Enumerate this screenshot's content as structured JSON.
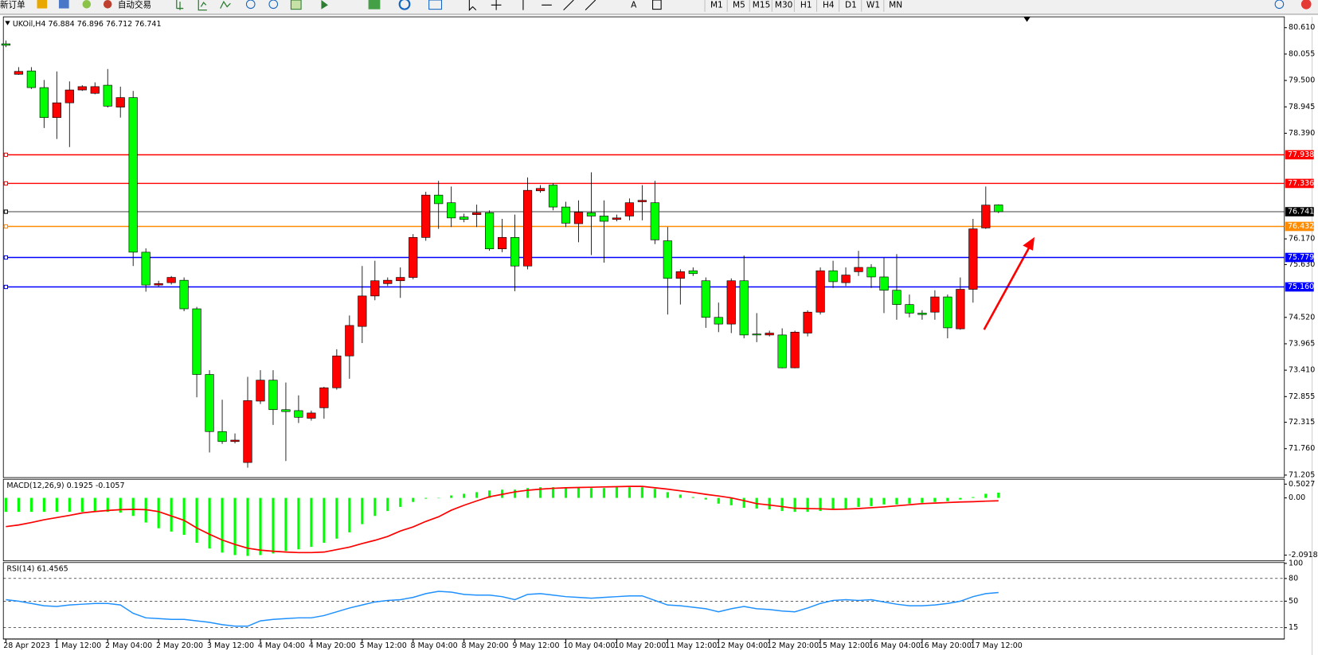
{
  "toolbar": {
    "new_order": "新订单",
    "auto_trading": "自动交易",
    "text_tool": "A",
    "timeframes": [
      "M1",
      "M5",
      "M15",
      "M30",
      "H1",
      "H4",
      "D1",
      "W1",
      "MN"
    ]
  },
  "chart_data": [
    {
      "type": "candlestick",
      "title": "UKOil,H4 76.884 76.896 76.712 76.741",
      "categories": [
        "28 Apr 2023",
        null,
        null,
        null,
        "1 May 12:00",
        null,
        null,
        null,
        "2 May 04:00",
        null,
        null,
        null,
        "2 May 20:00",
        null,
        null,
        null,
        "3 May 12:00",
        null,
        null,
        null,
        "4 May 04:00",
        null,
        null,
        null,
        "4 May 20:00",
        null,
        null,
        null,
        "5 May 12:00",
        null,
        null,
        null,
        "8 May 04:00",
        null,
        null,
        null,
        "8 May 20:00",
        null,
        null,
        null,
        "9 May 12:00",
        null,
        null,
        null,
        "10 May 04:00",
        null,
        null,
        null,
        "10 May 20:00",
        null,
        null,
        null,
        "11 May 12:00",
        null,
        null,
        null,
        "12 May 04:00",
        null,
        null,
        null,
        "12 May 20:00",
        null,
        null,
        null,
        "15 May 12:00",
        null,
        null,
        null,
        "16 May 04:00",
        null,
        null,
        null,
        "16 May 20:00",
        null,
        null,
        null,
        "17 May 12:00",
        null,
        null
      ],
      "open": [
        80.27,
        79.63,
        79.7,
        79.35,
        78.72,
        79.03,
        79.3,
        79.23,
        79.4,
        78.94,
        79.14,
        75.89,
        75.2,
        75.25,
        75.3,
        74.7,
        73.32,
        72.12,
        71.91,
        71.47,
        72.76,
        73.2,
        72.58,
        72.56,
        72.4,
        72.62,
        73.04,
        73.71,
        74.33,
        74.97,
        75.23,
        75.29,
        75.36,
        76.2,
        77.09,
        76.93,
        76.63,
        76.68,
        76.72,
        75.96,
        76.2,
        75.6,
        77.18,
        77.3,
        76.84,
        76.49,
        76.72,
        76.65,
        76.58,
        76.65,
        76.95,
        76.93,
        76.13,
        75.34,
        75.5,
        75.29,
        74.52,
        74.38,
        75.29,
        74.17,
        74.15,
        74.15,
        73.46,
        74.19,
        74.63,
        75.5,
        75.25,
        75.48,
        75.57,
        75.37,
        75.09,
        74.79,
        74.61,
        74.63,
        74.95,
        74.28,
        75.11,
        76.4,
        76.884
      ],
      "high": [
        80.34,
        79.78,
        79.78,
        79.51,
        79.69,
        79.48,
        79.4,
        79.46,
        79.74,
        79.37,
        79.28,
        75.97,
        75.29,
        75.39,
        75.36,
        74.74,
        73.41,
        72.79,
        72.08,
        73.27,
        73.41,
        73.41,
        73.15,
        72.88,
        72.56,
        73.06,
        73.85,
        74.56,
        75.6,
        75.71,
        75.36,
        75.57,
        76.27,
        77.16,
        77.39,
        77.27,
        76.7,
        76.89,
        76.77,
        76.59,
        76.68,
        77.46,
        77.3,
        77.34,
        76.95,
        76.98,
        77.57,
        76.98,
        76.68,
        77.02,
        77.3,
        77.39,
        76.42,
        75.53,
        75.57,
        75.36,
        74.83,
        75.34,
        75.82,
        74.61,
        74.24,
        74.29,
        74.24,
        74.67,
        75.57,
        75.71,
        75.57,
        75.92,
        75.64,
        75.78,
        75.85,
        75.0,
        74.67,
        75.09,
        75.0,
        75.36,
        76.59,
        77.27,
        76.896
      ],
      "low": [
        80.2,
        79.62,
        79.32,
        78.5,
        78.27,
        78.1,
        79.28,
        79.21,
        78.93,
        78.72,
        75.6,
        75.06,
        75.16,
        75.21,
        74.65,
        72.84,
        71.68,
        71.86,
        71.87,
        71.36,
        72.7,
        72.26,
        71.5,
        72.3,
        72.35,
        72.39,
        73.0,
        73.23,
        73.98,
        74.88,
        75.18,
        74.93,
        75.32,
        76.13,
        76.38,
        76.42,
        76.52,
        76.42,
        75.92,
        75.89,
        75.07,
        75.53,
        77.14,
        76.77,
        76.42,
        76.1,
        75.83,
        75.67,
        76.54,
        76.56,
        76.56,
        76.06,
        74.58,
        74.79,
        75.39,
        74.3,
        74.21,
        74.19,
        74.08,
        74.0,
        74.12,
        73.45,
        73.45,
        74.12,
        74.58,
        75.14,
        75.18,
        75.39,
        75.14,
        74.61,
        74.47,
        74.52,
        74.47,
        74.47,
        74.08,
        74.26,
        74.83,
        76.38,
        76.712
      ],
      "close": [
        80.24,
        79.69,
        79.35,
        78.72,
        79.03,
        79.3,
        79.37,
        79.37,
        78.96,
        79.14,
        75.89,
        75.2,
        75.23,
        75.36,
        74.7,
        73.32,
        72.12,
        71.91,
        71.94,
        72.77,
        73.2,
        72.58,
        72.54,
        72.42,
        72.51,
        73.04,
        73.71,
        74.35,
        74.97,
        75.29,
        75.3,
        75.36,
        76.2,
        77.09,
        76.91,
        76.61,
        76.58,
        76.72,
        75.96,
        76.2,
        75.6,
        77.19,
        77.23,
        76.84,
        76.5,
        76.73,
        76.65,
        76.54,
        76.61,
        76.93,
        76.98,
        76.15,
        75.34,
        75.48,
        75.44,
        74.52,
        74.38,
        75.29,
        74.15,
        74.15,
        74.19,
        73.46,
        74.21,
        74.63,
        75.5,
        75.27,
        75.41,
        75.57,
        75.37,
        75.09,
        74.79,
        74.61,
        74.58,
        74.95,
        74.3,
        75.11,
        76.38,
        76.88,
        76.741
      ],
      "up_color": "#ff0000",
      "down_color": "#00ff00",
      "ylim": [
        71.17,
        80.82
      ],
      "yticks": [
        {
          "value": 80.61,
          "label": "80.610"
        },
        {
          "value": 80.055,
          "label": "80.055"
        },
        {
          "value": 79.5,
          "label": "79.500"
        },
        {
          "value": 78.945,
          "label": "78.945"
        },
        {
          "value": 78.39,
          "label": "78.390"
        },
        {
          "value": 76.17,
          "label": "76.170"
        },
        {
          "value": 75.63,
          "label": "75.630"
        },
        {
          "value": 74.52,
          "label": "74.520"
        },
        {
          "value": 73.965,
          "label": "73.965"
        },
        {
          "value": 73.41,
          "label": "73.410"
        },
        {
          "value": 72.855,
          "label": "72.855"
        },
        {
          "value": 72.315,
          "label": "72.315"
        },
        {
          "value": 71.76,
          "label": "71.760"
        },
        {
          "value": 71.205,
          "label": "71.205"
        }
      ],
      "levels": [
        {
          "value": 77.938,
          "label": "77.938",
          "color": "#ff0000"
        },
        {
          "value": 77.336,
          "label": "77.336",
          "color": "#ff0000"
        },
        {
          "value": 76.741,
          "label": "76.741",
          "color": "#000000"
        },
        {
          "value": 76.432,
          "label": "76.432",
          "color": "#ff8c00"
        },
        {
          "value": 75.779,
          "label": "75.779",
          "color": "#0000ff"
        },
        {
          "value": 75.16,
          "label": "75.160",
          "color": "#0000ff"
        }
      ]
    },
    {
      "type": "combo",
      "title": "MACD(12,26,9) 0.1925 -0.1057",
      "ylim": [
        -2.27,
        0.65
      ],
      "yticks": [
        0.5027,
        {
          "value": 0,
          "label": "0.00"
        },
        -2.0918
      ],
      "series": [
        {
          "type": "bar",
          "color": "#00ff00",
          "values": [
            -0.51,
            -0.51,
            -0.51,
            -0.51,
            -0.51,
            -0.51,
            -0.51,
            -0.51,
            -0.51,
            -0.54,
            -0.66,
            -0.9,
            -1.11,
            -1.23,
            -1.35,
            -1.64,
            -1.85,
            -2.0,
            -2.09,
            -2.12,
            -2.09,
            -2.03,
            -1.94,
            -1.88,
            -1.79,
            -1.64,
            -1.49,
            -1.26,
            -0.96,
            -0.66,
            -0.48,
            -0.33,
            -0.15,
            -0.03,
            0.0,
            0.09,
            0.15,
            0.21,
            0.27,
            0.3,
            0.3,
            0.36,
            0.39,
            0.39,
            0.36,
            0.39,
            0.36,
            0.36,
            0.39,
            0.39,
            0.39,
            0.33,
            0.21,
            0.12,
            0.03,
            -0.06,
            -0.21,
            -0.27,
            -0.36,
            -0.39,
            -0.42,
            -0.48,
            -0.51,
            -0.51,
            -0.48,
            -0.42,
            -0.39,
            -0.33,
            -0.3,
            -0.24,
            -0.24,
            -0.21,
            -0.18,
            -0.15,
            -0.12,
            -0.06,
            0.03,
            0.15,
            0.1925
          ]
        },
        {
          "type": "line",
          "color": "#ff0000",
          "values": [
            -1.05,
            -0.99,
            -0.9,
            -0.8,
            -0.72,
            -0.64,
            -0.55,
            -0.5,
            -0.46,
            -0.43,
            -0.42,
            -0.43,
            -0.5,
            -0.66,
            -0.82,
            -1.1,
            -1.33,
            -1.54,
            -1.7,
            -1.84,
            -1.91,
            -1.95,
            -1.98,
            -2.0,
            -2.0,
            -1.98,
            -1.89,
            -1.8,
            -1.67,
            -1.55,
            -1.41,
            -1.21,
            -1.06,
            -0.86,
            -0.69,
            -0.45,
            -0.27,
            -0.11,
            0.04,
            0.13,
            0.22,
            0.28,
            0.32,
            0.35,
            0.37,
            0.38,
            0.39,
            0.4,
            0.41,
            0.42,
            0.42,
            0.37,
            0.32,
            0.26,
            0.2,
            0.13,
            0.07,
            0.0,
            -0.1,
            -0.21,
            -0.26,
            -0.32,
            -0.38,
            -0.39,
            -0.4,
            -0.42,
            -0.41,
            -0.39,
            -0.36,
            -0.33,
            -0.29,
            -0.25,
            -0.21,
            -0.19,
            -0.17,
            -0.15,
            -0.14,
            -0.12,
            -0.1057
          ]
        }
      ]
    },
    {
      "type": "line",
      "title": "RSI(14) 61.4565",
      "color": "#1e90ff",
      "ylim": [
        0,
        100
      ],
      "yticks": [
        100,
        80,
        50,
        15
      ],
      "values": [
        52,
        50,
        47,
        44,
        43,
        45,
        46,
        47,
        47,
        45,
        34,
        28,
        27,
        26,
        26,
        24,
        22,
        19,
        17,
        17,
        24,
        26,
        27,
        28,
        28,
        31,
        36,
        41,
        45,
        49,
        51,
        52,
        55,
        60,
        63,
        62,
        59,
        58,
        58,
        56,
        52,
        59,
        60,
        58,
        56,
        55,
        54,
        55,
        56,
        57,
        57,
        51,
        45,
        44,
        42,
        40,
        36,
        40,
        43,
        40,
        39,
        37,
        36,
        41,
        47,
        51,
        52,
        51,
        52,
        49,
        46,
        44,
        44,
        45,
        47,
        50,
        56,
        60,
        61.4565
      ]
    }
  ]
}
